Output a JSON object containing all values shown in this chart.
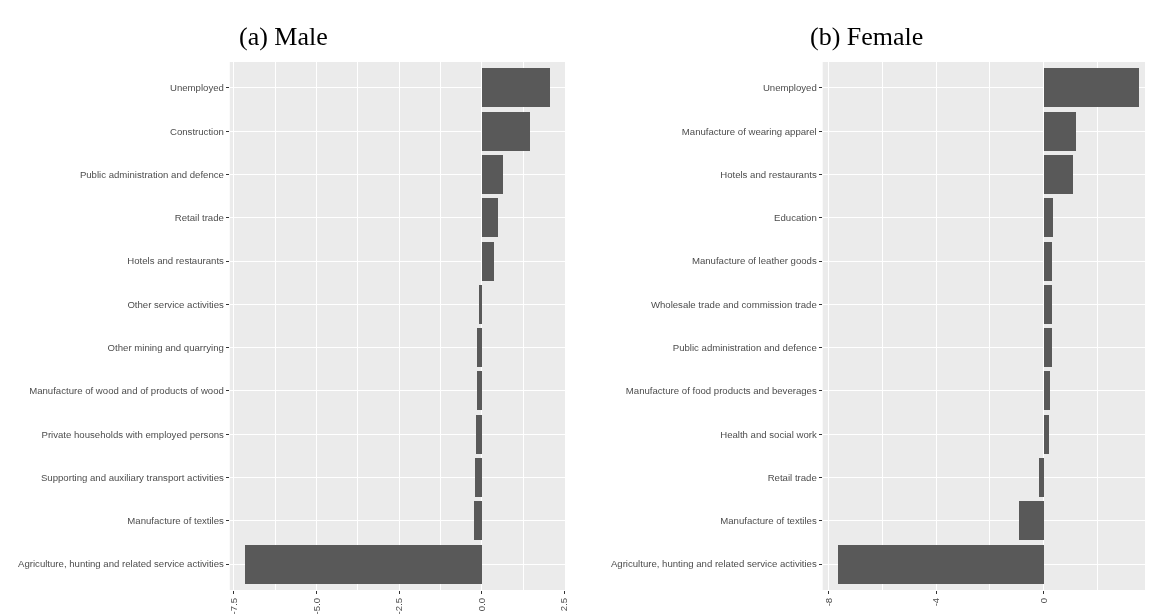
{
  "chart_data": [
    {
      "type": "bar",
      "orientation": "horizontal",
      "title": "(a) Male",
      "categories": [
        "Unemployed",
        "Construction",
        "Public administration and defence",
        "Retail trade",
        "Hotels and restaurants",
        "Other service activities",
        "Other mining and quarrying",
        "Manufacture of wood and of products of wood",
        "Private households with employed persons",
        "Supporting and auxiliary transport activities",
        "Manufacture of textiles",
        "Agriculture, hunting and related service activities"
      ],
      "values": [
        2.06,
        1.45,
        0.65,
        0.48,
        0.37,
        -0.1,
        -0.14,
        -0.16,
        -0.19,
        -0.21,
        -0.24,
        -7.16
      ],
      "color": "#595959",
      "xlim": [
        -7.62,
        2.52
      ],
      "xticks": [
        -7.5,
        {
          "value": -5,
          "label": "-5.0"
        },
        -2.5,
        {
          "value": 0,
          "label": "0.0"
        },
        2.5
      ],
      "grid": true
    },
    {
      "type": "bar",
      "orientation": "horizontal",
      "title": "(b) Female",
      "categories": [
        "Unemployed",
        "Manufacture of wearing apparel",
        "Hotels and restaurants",
        "Education",
        "Manufacture of leather goods",
        "Wholesale trade and commission trade",
        "Public administration and defence",
        "Manufacture of food products and beverages",
        "Health and social work",
        "Retail trade",
        "Manufacture of textiles",
        "Agriculture, hunting and related service activities"
      ],
      "values": [
        3.55,
        1.19,
        1.07,
        0.34,
        0.32,
        0.3,
        0.29,
        0.24,
        0.2,
        -0.19,
        -0.93,
        -7.67
      ],
      "color": "#595959",
      "xlim": [
        -8.23,
        3.78
      ],
      "xticks": [
        -8,
        -4,
        0
      ],
      "grid": true
    }
  ]
}
